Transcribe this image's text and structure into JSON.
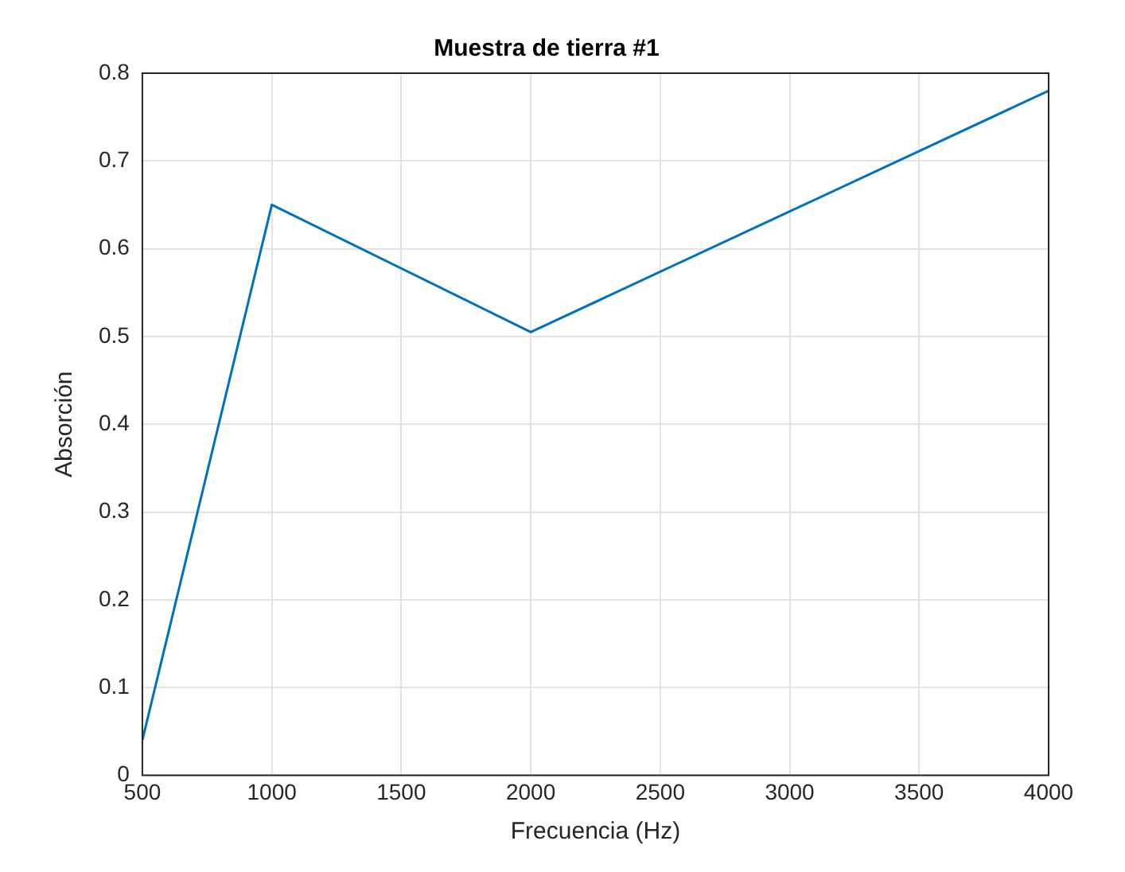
{
  "chart_data": {
    "type": "line",
    "title": "Muestra de tierra #1",
    "xlabel": "Frecuencia (Hz)",
    "ylabel": "Absorción",
    "x": [
      500,
      1000,
      2000,
      4000
    ],
    "series": [
      {
        "color": "#0072bd",
        "values": [
          0.04,
          0.65,
          0.505,
          0.78
        ]
      }
    ],
    "xlim": [
      500,
      4000
    ],
    "xticks": [
      500,
      1000,
      1500,
      2000,
      2500,
      3000,
      3500,
      4000
    ],
    "ylim": [
      0,
      0.8
    ],
    "yticks": [
      0,
      0.1,
      0.2,
      0.3,
      0.4,
      0.5,
      0.6,
      0.7,
      0.8
    ],
    "grid": true,
    "legend": false,
    "marker": "none",
    "line_style": "solid"
  }
}
